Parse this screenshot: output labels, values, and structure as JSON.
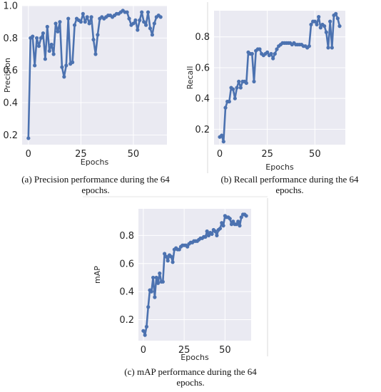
{
  "chart_data": [
    {
      "type": "line",
      "xlabel": "Epochs",
      "ylabel": "Precision",
      "xlim": [
        -3,
        66
      ],
      "ylim": [
        0.14,
        1.0
      ],
      "xticks": [
        0,
        25,
        50
      ],
      "yticks": [
        0.2,
        0.4,
        0.6,
        0.8,
        1.0
      ],
      "ytick_labels": [
        "0.2",
        "0.4",
        "0.6",
        "0.8",
        "1.0"
      ],
      "grid": true,
      "color": "#4c72b0",
      "series": [
        {
          "x": [
            0,
            1,
            2,
            3,
            4,
            5,
            6,
            7,
            8,
            9,
            10,
            11,
            12,
            13,
            14,
            15,
            16,
            17,
            18,
            19,
            20,
            21,
            22,
            23,
            24,
            25,
            26,
            27,
            28,
            29,
            30,
            31,
            32,
            33,
            34,
            35,
            36,
            37,
            38,
            39,
            40,
            41,
            42,
            43,
            44,
            45,
            46,
            47,
            48,
            49,
            50,
            51,
            52,
            53,
            54,
            55,
            56,
            57,
            58,
            59,
            60,
            61,
            62,
            63
          ],
          "values": [
            0.18,
            0.8,
            0.81,
            0.63,
            0.8,
            0.75,
            0.8,
            0.83,
            0.67,
            0.87,
            0.72,
            0.76,
            0.7,
            0.89,
            0.84,
            0.9,
            0.62,
            0.56,
            0.63,
            0.92,
            0.64,
            0.65,
            0.88,
            0.92,
            0.91,
            0.9,
            0.95,
            0.9,
            0.93,
            0.89,
            0.93,
            0.79,
            0.7,
            0.82,
            0.92,
            0.93,
            0.92,
            0.93,
            0.94,
            0.94,
            0.93,
            0.94,
            0.95,
            0.95,
            0.96,
            0.97,
            0.96,
            0.96,
            0.92,
            0.88,
            0.89,
            0.91,
            0.85,
            0.91,
            0.96,
            0.9,
            0.88,
            0.96,
            0.86,
            0.82,
            0.89,
            0.93,
            0.94,
            0.93
          ]
        }
      ]
    },
    {
      "type": "line",
      "xlabel": "Epochs",
      "ylabel": "Recall",
      "xlim": [
        -3,
        66
      ],
      "ylim": [
        0.1,
        0.97
      ],
      "xticks": [
        0,
        25,
        50
      ],
      "yticks": [
        0.2,
        0.4,
        0.6,
        0.8
      ],
      "ytick_labels": [
        "0.2",
        "0.4",
        "0.6",
        "0.8"
      ],
      "grid": true,
      "color": "#4c72b0",
      "series": [
        {
          "x": [
            0,
            1,
            2,
            3,
            4,
            5,
            6,
            7,
            8,
            9,
            10,
            11,
            12,
            13,
            14,
            15,
            16,
            17,
            18,
            19,
            20,
            21,
            22,
            23,
            24,
            25,
            26,
            27,
            28,
            29,
            30,
            31,
            32,
            33,
            34,
            35,
            36,
            37,
            38,
            39,
            40,
            41,
            42,
            43,
            44,
            45,
            46,
            47,
            48,
            49,
            50,
            51,
            52,
            53,
            54,
            55,
            56,
            57,
            58,
            59,
            60,
            61,
            62,
            63
          ],
          "values": [
            0.15,
            0.16,
            0.12,
            0.34,
            0.38,
            0.38,
            0.47,
            0.46,
            0.4,
            0.47,
            0.51,
            0.47,
            0.51,
            0.51,
            0.5,
            0.7,
            0.69,
            0.69,
            0.51,
            0.71,
            0.72,
            0.72,
            0.69,
            0.68,
            0.69,
            0.7,
            0.68,
            0.69,
            0.66,
            0.69,
            0.72,
            0.74,
            0.75,
            0.76,
            0.76,
            0.76,
            0.76,
            0.76,
            0.75,
            0.76,
            0.75,
            0.75,
            0.75,
            0.75,
            0.74,
            0.74,
            0.73,
            0.74,
            0.88,
            0.9,
            0.9,
            0.88,
            0.93,
            0.86,
            0.88,
            0.87,
            0.83,
            0.73,
            0.9,
            0.73,
            0.94,
            0.95,
            0.92,
            0.87
          ]
        }
      ]
    },
    {
      "type": "line",
      "xlabel": "Epochs",
      "ylabel": "mAP",
      "xlim": [
        -3,
        66
      ],
      "ylim": [
        0.05,
        0.99
      ],
      "xticks": [
        0,
        25,
        50
      ],
      "yticks": [
        0.2,
        0.4,
        0.6,
        0.8
      ],
      "ytick_labels": [
        "0.2",
        "0.4",
        "0.6",
        "0.8"
      ],
      "grid": true,
      "color": "#4c72b0",
      "series": [
        {
          "x": [
            0,
            1,
            2,
            3,
            4,
            5,
            6,
            7,
            8,
            9,
            10,
            11,
            12,
            13,
            14,
            15,
            16,
            17,
            18,
            19,
            20,
            21,
            22,
            23,
            24,
            25,
            26,
            27,
            28,
            29,
            30,
            31,
            32,
            33,
            34,
            35,
            36,
            37,
            38,
            39,
            40,
            41,
            42,
            43,
            44,
            45,
            46,
            47,
            48,
            49,
            50,
            51,
            52,
            53,
            54,
            55,
            56,
            57,
            58,
            59,
            60,
            61,
            62,
            63
          ],
          "values": [
            0.12,
            0.09,
            0.15,
            0.29,
            0.41,
            0.4,
            0.5,
            0.36,
            0.5,
            0.46,
            0.53,
            0.47,
            0.47,
            0.67,
            0.65,
            0.62,
            0.66,
            0.65,
            0.61,
            0.7,
            0.71,
            0.7,
            0.7,
            0.72,
            0.73,
            0.73,
            0.73,
            0.72,
            0.74,
            0.75,
            0.75,
            0.76,
            0.76,
            0.76,
            0.77,
            0.78,
            0.78,
            0.79,
            0.79,
            0.83,
            0.8,
            0.82,
            0.81,
            0.84,
            0.83,
            0.8,
            0.84,
            0.85,
            0.89,
            0.87,
            0.94,
            0.93,
            0.93,
            0.92,
            0.88,
            0.9,
            0.88,
            0.88,
            0.9,
            0.87,
            0.93,
            0.95,
            0.95,
            0.94
          ]
        }
      ]
    }
  ],
  "captions": {
    "a_line1": "(a) Precision performance during the 64",
    "a_line2": "epochs.",
    "b_line1": "(b) Recall performance during the 64",
    "b_line2": "epochs.",
    "c_line1": "(c) mAP performance during the 64",
    "c_line2": "epochs."
  }
}
